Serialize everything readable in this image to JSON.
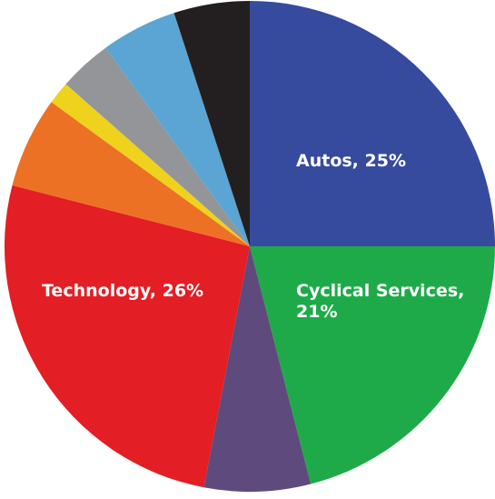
{
  "chart_data": {
    "type": "pie",
    "start_angle_deg": 0,
    "direction": "clockwise",
    "slices": [
      {
        "label": "Autos, 25%",
        "value": 25,
        "color": "#364b9e"
      },
      {
        "label": "Cyclical Services, 21%",
        "value": 21,
        "color": "#1faa4a"
      },
      {
        "label": "",
        "value": 7,
        "color": "#5e4a7c"
      },
      {
        "label": "Technology, 26%",
        "value": 26,
        "color": "#e31e24"
      },
      {
        "label": "",
        "value": 6,
        "color": "#ec7125"
      },
      {
        "label": "",
        "value": 1.5,
        "color": "#eed21c"
      },
      {
        "label": "",
        "value": 3.5,
        "color": "#939598"
      },
      {
        "label": "",
        "value": 5,
        "color": "#5aa5d3"
      },
      {
        "label": "",
        "value": 5,
        "color": "#231f20"
      }
    ]
  }
}
